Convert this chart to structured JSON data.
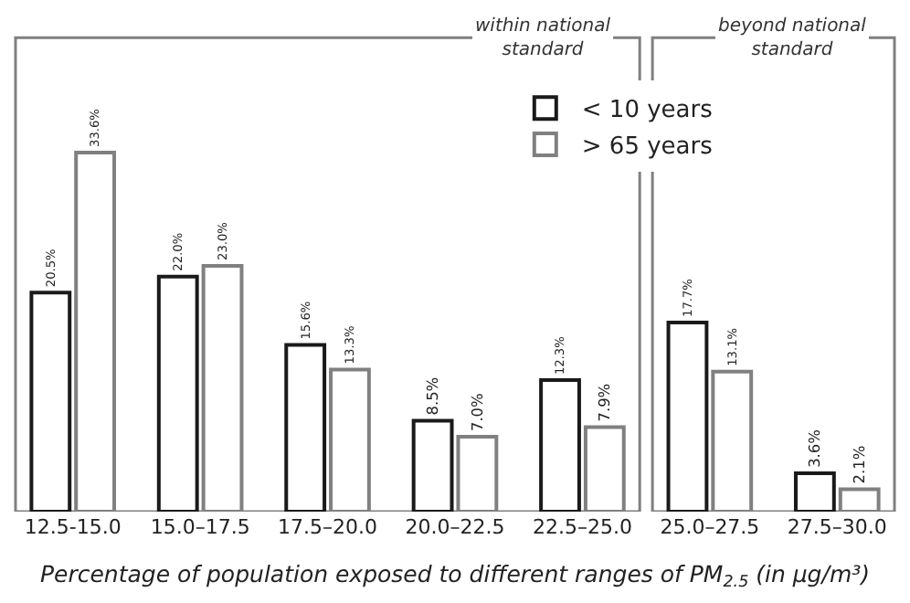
{
  "chart_data": {
    "type": "bar",
    "xlabel": "Percentage of population exposed to different ranges of PM$_{2.5}$ (in μg/m³)",
    "categories": [
      "12.5-15.0",
      "15.0–17.5",
      "17.5–20.0",
      "20.0–22.5",
      "22.5–25.0",
      "25.0–27.5",
      "27.5–30.0"
    ],
    "series": [
      {
        "name": "< 10 years",
        "color": "#1a1a1a",
        "values": [
          20.5,
          22.0,
          15.6,
          8.5,
          12.3,
          17.7,
          3.6
        ],
        "value_labels": [
          "20.5%",
          "22.0%",
          "15.6%",
          "8.5%",
          "12.3%",
          "17.7%",
          "3.6%"
        ]
      },
      {
        "name": "> 65 years",
        "color": "#808080",
        "values": [
          33.6,
          23.0,
          13.3,
          7.0,
          7.9,
          13.1,
          2.1
        ],
        "value_labels": [
          "33.6%",
          "23.0%",
          "13.3%",
          "7.0%",
          "7.9%",
          "13.1%",
          "2.1%"
        ]
      }
    ],
    "annotations": [
      "within national standard",
      "beyond national standard"
    ],
    "legend": "top right",
    "grid": false
  }
}
